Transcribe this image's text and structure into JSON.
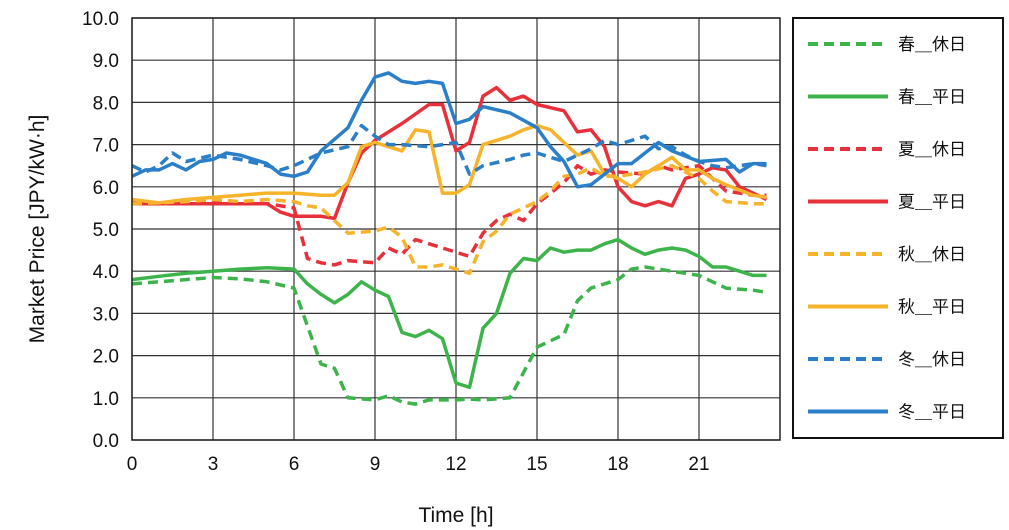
{
  "chart_data": {
    "type": "line",
    "xlabel": "Time [h]",
    "ylabel": "Market Price [JPY/kW·h]",
    "xlim": [
      0,
      24
    ],
    "ylim": [
      0,
      10
    ],
    "xticks": [
      0,
      3,
      6,
      9,
      12,
      15,
      18,
      21
    ],
    "yticks": [
      0,
      1,
      2,
      3,
      4,
      5,
      6,
      7,
      8,
      9,
      10
    ],
    "ytick_labels": [
      "0.0",
      "1.0",
      "2.0",
      "3.0",
      "4.0",
      "5.0",
      "6.0",
      "7.0",
      "8.0",
      "9.0",
      "10.0"
    ],
    "grid": true,
    "legend_position": "right",
    "series": [
      {
        "name": "春＿休日",
        "color": "#3cb44b",
        "dash": "dashed",
        "points": [
          [
            0,
            3.7
          ],
          [
            1,
            3.75
          ],
          [
            2,
            3.8
          ],
          [
            3,
            3.85
          ],
          [
            4,
            3.82
          ],
          [
            5,
            3.75
          ],
          [
            6,
            3.6
          ],
          [
            6.5,
            2.7
          ],
          [
            7,
            1.8
          ],
          [
            7.5,
            1.7
          ],
          [
            8,
            1.0
          ],
          [
            9,
            0.95
          ],
          [
            9.5,
            1.05
          ],
          [
            10,
            0.9
          ],
          [
            10.5,
            0.85
          ],
          [
            11,
            0.95
          ],
          [
            12,
            0.95
          ],
          [
            12.5,
            0.97
          ],
          [
            13,
            0.95
          ],
          [
            14,
            1.0
          ],
          [
            14.5,
            1.6
          ],
          [
            15,
            2.2
          ],
          [
            16,
            2.5
          ],
          [
            16.5,
            3.3
          ],
          [
            17,
            3.6
          ],
          [
            18,
            3.8
          ],
          [
            18.5,
            4.05
          ],
          [
            19,
            4.1
          ],
          [
            20,
            4.0
          ],
          [
            21,
            3.9
          ],
          [
            22,
            3.6
          ],
          [
            23,
            3.55
          ],
          [
            23.5,
            3.5
          ]
        ]
      },
      {
        "name": "春＿平日",
        "color": "#3cb44b",
        "dash": "solid",
        "points": [
          [
            0,
            3.8
          ],
          [
            1,
            3.88
          ],
          [
            2,
            3.95
          ],
          [
            3,
            4.0
          ],
          [
            4,
            4.05
          ],
          [
            5,
            4.08
          ],
          [
            6,
            4.05
          ],
          [
            6.5,
            3.7
          ],
          [
            7,
            3.45
          ],
          [
            7.5,
            3.25
          ],
          [
            8,
            3.45
          ],
          [
            8.5,
            3.75
          ],
          [
            9,
            3.55
          ],
          [
            9.5,
            3.4
          ],
          [
            10,
            2.55
          ],
          [
            10.5,
            2.45
          ],
          [
            11,
            2.6
          ],
          [
            11.5,
            2.4
          ],
          [
            12,
            1.35
          ],
          [
            12.5,
            1.25
          ],
          [
            13,
            2.65
          ],
          [
            13.5,
            3.0
          ],
          [
            14,
            3.95
          ],
          [
            14.5,
            4.3
          ],
          [
            15,
            4.25
          ],
          [
            15.5,
            4.55
          ],
          [
            16,
            4.45
          ],
          [
            16.5,
            4.5
          ],
          [
            17,
            4.5
          ],
          [
            17.5,
            4.65
          ],
          [
            18,
            4.75
          ],
          [
            18.5,
            4.55
          ],
          [
            19,
            4.4
          ],
          [
            19.5,
            4.5
          ],
          [
            20,
            4.55
          ],
          [
            20.5,
            4.5
          ],
          [
            21,
            4.35
          ],
          [
            21.5,
            4.1
          ],
          [
            22,
            4.1
          ],
          [
            22.5,
            4.0
          ],
          [
            23,
            3.9
          ],
          [
            23.5,
            3.9
          ]
        ]
      },
      {
        "name": "夏＿休日",
        "color": "#e8303a",
        "dash": "dashed",
        "points": [
          [
            0,
            5.65
          ],
          [
            1,
            5.6
          ],
          [
            2,
            5.62
          ],
          [
            3,
            5.65
          ],
          [
            4,
            5.62
          ],
          [
            5,
            5.6
          ],
          [
            6,
            5.5
          ],
          [
            6.5,
            4.3
          ],
          [
            7,
            4.2
          ],
          [
            7.5,
            4.15
          ],
          [
            8,
            4.25
          ],
          [
            9,
            4.2
          ],
          [
            9.5,
            4.55
          ],
          [
            10,
            4.4
          ],
          [
            10.5,
            4.75
          ],
          [
            11,
            4.65
          ],
          [
            12,
            4.45
          ],
          [
            12.5,
            4.35
          ],
          [
            13,
            4.9
          ],
          [
            13.5,
            5.2
          ],
          [
            14,
            5.35
          ],
          [
            14.5,
            5.2
          ],
          [
            15,
            5.6
          ],
          [
            16,
            6.1
          ],
          [
            16.5,
            6.5
          ],
          [
            17,
            6.3
          ],
          [
            17.5,
            6.4
          ],
          [
            18,
            6.35
          ],
          [
            19,
            6.3
          ],
          [
            19.5,
            6.5
          ],
          [
            20,
            6.4
          ],
          [
            21,
            6.5
          ],
          [
            21.5,
            6.2
          ],
          [
            22,
            5.9
          ],
          [
            23,
            5.8
          ],
          [
            23.5,
            5.8
          ]
        ]
      },
      {
        "name": "夏＿平日",
        "color": "#e8303a",
        "dash": "solid",
        "points": [
          [
            0,
            5.6
          ],
          [
            1,
            5.6
          ],
          [
            2,
            5.6
          ],
          [
            3,
            5.6
          ],
          [
            4,
            5.6
          ],
          [
            5,
            5.6
          ],
          [
            5.5,
            5.4
          ],
          [
            6,
            5.3
          ],
          [
            7,
            5.3
          ],
          [
            7.5,
            5.25
          ],
          [
            8,
            6.1
          ],
          [
            8.5,
            6.8
          ],
          [
            9,
            7.1
          ],
          [
            10,
            7.5
          ],
          [
            11,
            7.95
          ],
          [
            11.5,
            7.95
          ],
          [
            12,
            6.85
          ],
          [
            12.5,
            7.05
          ],
          [
            13,
            8.15
          ],
          [
            13.5,
            8.35
          ],
          [
            14,
            8.05
          ],
          [
            14.5,
            8.15
          ],
          [
            15,
            7.95
          ],
          [
            16,
            7.8
          ],
          [
            16.5,
            7.3
          ],
          [
            17,
            7.35
          ],
          [
            17.5,
            6.95
          ],
          [
            18,
            6.0
          ],
          [
            18.5,
            5.65
          ],
          [
            19,
            5.55
          ],
          [
            19.5,
            5.65
          ],
          [
            20,
            5.55
          ],
          [
            20.5,
            6.2
          ],
          [
            21,
            6.3
          ],
          [
            21.5,
            6.45
          ],
          [
            22,
            6.4
          ],
          [
            22.5,
            6.0
          ],
          [
            23,
            5.85
          ],
          [
            23.5,
            5.7
          ]
        ]
      },
      {
        "name": "秋＿休日",
        "color": "#f7b32b",
        "dash": "dashed",
        "points": [
          [
            0,
            5.6
          ],
          [
            1,
            5.62
          ],
          [
            2,
            5.65
          ],
          [
            3,
            5.7
          ],
          [
            4,
            5.65
          ],
          [
            5,
            5.7
          ],
          [
            6,
            5.65
          ],
          [
            6.5,
            5.55
          ],
          [
            7,
            5.5
          ],
          [
            7.5,
            5.2
          ],
          [
            8,
            4.9
          ],
          [
            9,
            4.95
          ],
          [
            9.5,
            5.05
          ],
          [
            10,
            4.8
          ],
          [
            10.5,
            4.1
          ],
          [
            11,
            4.1
          ],
          [
            11.5,
            4.15
          ],
          [
            12,
            4.05
          ],
          [
            12.5,
            3.95
          ],
          [
            13,
            4.7
          ],
          [
            13.5,
            4.95
          ],
          [
            14,
            5.35
          ],
          [
            15,
            5.65
          ],
          [
            15.5,
            5.9
          ],
          [
            16,
            6.25
          ],
          [
            16.5,
            6.3
          ],
          [
            17,
            6.45
          ],
          [
            17.5,
            6.25
          ],
          [
            18,
            6.25
          ],
          [
            19,
            6.35
          ],
          [
            20,
            6.5
          ],
          [
            21,
            6.2
          ],
          [
            21.5,
            5.9
          ],
          [
            22,
            5.65
          ],
          [
            23,
            5.6
          ],
          [
            23.5,
            5.6
          ]
        ]
      },
      {
        "name": "秋＿平日",
        "color": "#f7b32b",
        "dash": "solid",
        "points": [
          [
            0,
            5.7
          ],
          [
            1,
            5.62
          ],
          [
            2,
            5.7
          ],
          [
            3,
            5.75
          ],
          [
            4,
            5.8
          ],
          [
            5,
            5.85
          ],
          [
            6,
            5.85
          ],
          [
            7,
            5.8
          ],
          [
            7.5,
            5.8
          ],
          [
            8,
            6.1
          ],
          [
            8.5,
            6.95
          ],
          [
            9,
            7.05
          ],
          [
            9.5,
            6.95
          ],
          [
            10,
            6.85
          ],
          [
            10.5,
            7.35
          ],
          [
            11,
            7.3
          ],
          [
            11.5,
            5.85
          ],
          [
            12,
            5.85
          ],
          [
            12.5,
            6.05
          ],
          [
            13,
            7.0
          ],
          [
            14,
            7.2
          ],
          [
            14.5,
            7.35
          ],
          [
            15,
            7.45
          ],
          [
            15.5,
            7.35
          ],
          [
            16,
            7.05
          ],
          [
            16.5,
            6.75
          ],
          [
            17,
            6.85
          ],
          [
            17.5,
            6.3
          ],
          [
            18,
            6.2
          ],
          [
            18.5,
            6.0
          ],
          [
            19,
            6.3
          ],
          [
            19.5,
            6.5
          ],
          [
            20,
            6.7
          ],
          [
            20.5,
            6.4
          ],
          [
            21,
            6.4
          ],
          [
            21.5,
            6.2
          ],
          [
            22,
            6.05
          ],
          [
            23,
            5.8
          ],
          [
            23.5,
            5.75
          ]
        ]
      },
      {
        "name": "冬＿休日",
        "color": "#2a7fc8",
        "dash": "dashed",
        "points": [
          [
            0,
            6.5
          ],
          [
            0.5,
            6.35
          ],
          [
            1,
            6.5
          ],
          [
            1.5,
            6.8
          ],
          [
            2,
            6.6
          ],
          [
            3,
            6.75
          ],
          [
            3.5,
            6.7
          ],
          [
            4,
            6.65
          ],
          [
            5,
            6.5
          ],
          [
            5.5,
            6.4
          ],
          [
            6,
            6.5
          ],
          [
            7,
            6.8
          ],
          [
            8,
            6.95
          ],
          [
            8.5,
            7.45
          ],
          [
            9,
            7.2
          ],
          [
            9.5,
            7.0
          ],
          [
            10,
            7.0
          ],
          [
            11,
            6.95
          ],
          [
            12,
            7.05
          ],
          [
            12.5,
            6.3
          ],
          [
            13,
            6.5
          ],
          [
            14,
            6.65
          ],
          [
            14.5,
            6.75
          ],
          [
            15,
            6.8
          ],
          [
            16,
            6.6
          ],
          [
            17,
            6.9
          ],
          [
            17.5,
            7.1
          ],
          [
            18,
            7.0
          ],
          [
            18.5,
            7.1
          ],
          [
            19,
            7.2
          ],
          [
            19.5,
            6.9
          ],
          [
            20,
            6.95
          ],
          [
            20.5,
            6.75
          ],
          [
            21,
            6.6
          ],
          [
            21.5,
            6.5
          ],
          [
            22,
            6.45
          ],
          [
            23,
            6.55
          ],
          [
            23.5,
            6.5
          ]
        ]
      },
      {
        "name": "冬＿平日",
        "color": "#2a7fc8",
        "dash": "solid",
        "points": [
          [
            0,
            6.25
          ],
          [
            0.5,
            6.4
          ],
          [
            1,
            6.4
          ],
          [
            1.5,
            6.55
          ],
          [
            2,
            6.4
          ],
          [
            2.5,
            6.6
          ],
          [
            3,
            6.65
          ],
          [
            3.5,
            6.8
          ],
          [
            4,
            6.75
          ],
          [
            5,
            6.55
          ],
          [
            5.5,
            6.3
          ],
          [
            6,
            6.25
          ],
          [
            6.5,
            6.35
          ],
          [
            7,
            6.85
          ],
          [
            8,
            7.4
          ],
          [
            8.5,
            8.05
          ],
          [
            9,
            8.6
          ],
          [
            9.5,
            8.7
          ],
          [
            10,
            8.5
          ],
          [
            10.5,
            8.45
          ],
          [
            11,
            8.5
          ],
          [
            11.5,
            8.45
          ],
          [
            12,
            7.5
          ],
          [
            12.5,
            7.6
          ],
          [
            13,
            7.9
          ],
          [
            14,
            7.75
          ],
          [
            15,
            7.4
          ],
          [
            15.5,
            6.95
          ],
          [
            16,
            6.6
          ],
          [
            16.5,
            6.0
          ],
          [
            17,
            6.05
          ],
          [
            17.5,
            6.3
          ],
          [
            18,
            6.55
          ],
          [
            18.5,
            6.55
          ],
          [
            19,
            6.8
          ],
          [
            19.5,
            7.05
          ],
          [
            20,
            6.85
          ],
          [
            21,
            6.6
          ],
          [
            22,
            6.65
          ],
          [
            22.5,
            6.35
          ],
          [
            23,
            6.55
          ],
          [
            23.5,
            6.55
          ]
        ]
      }
    ]
  }
}
